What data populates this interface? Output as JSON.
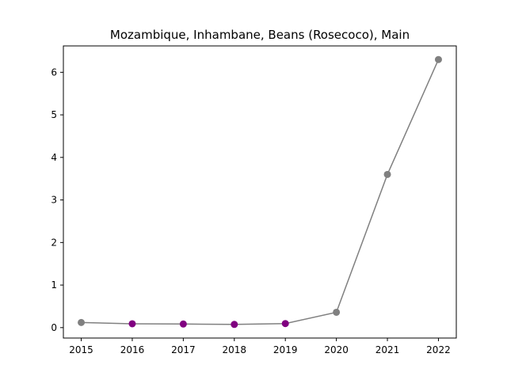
{
  "chart_data": {
    "type": "line",
    "title": "Mozambique, Inhambane, Beans (Rosecoco), Main",
    "xlabel": "",
    "ylabel": "",
    "x": [
      2015,
      2016,
      2017,
      2018,
      2019,
      2020,
      2021,
      2022
    ],
    "series": [
      {
        "values": [
          0.12,
          0.09,
          0.085,
          0.075,
          0.095,
          0.36,
          3.6,
          6.3
        ],
        "point_colors": [
          "#808080",
          "#800080",
          "#800080",
          "#800080",
          "#800080",
          "#808080",
          "#808080",
          "#808080"
        ]
      }
    ],
    "line_color": "#808080",
    "xlim": [
      2014.65,
      2022.35
    ],
    "ylim": [
      -0.245,
      6.62
    ],
    "xticks": [
      "2015",
      "2016",
      "2017",
      "2018",
      "2019",
      "2020",
      "2021",
      "2022"
    ],
    "yticks": [
      "0",
      "1",
      "2",
      "3",
      "4",
      "5",
      "6"
    ],
    "grid": false
  }
}
